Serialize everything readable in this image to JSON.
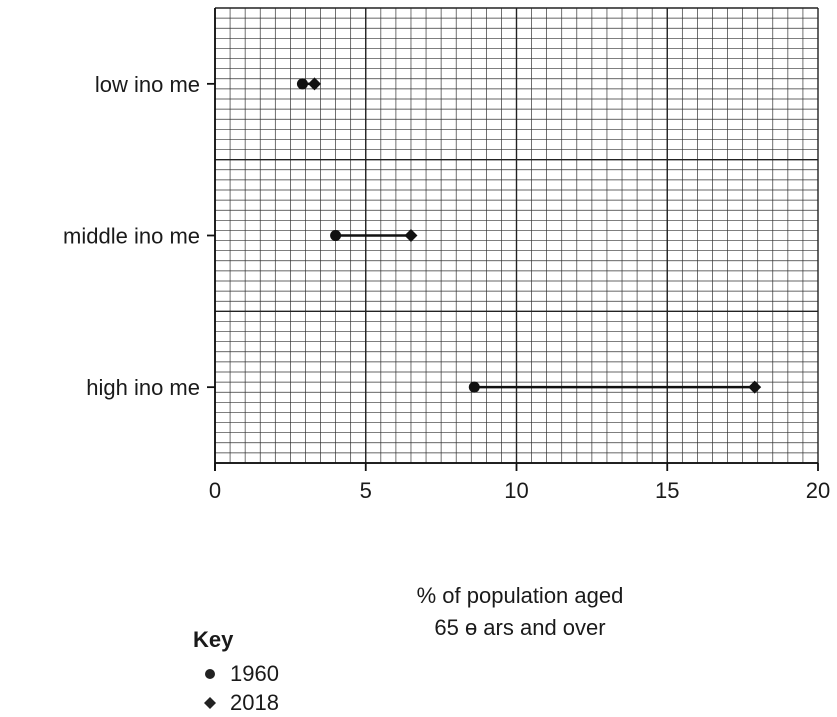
{
  "chart_data": {
    "type": "dumbbell",
    "categories": [
      "low ino me",
      "middle ino me",
      "high ino me"
    ],
    "series": [
      {
        "name": "1960",
        "marker": "circle",
        "values": [
          2.9,
          4.0,
          8.6
        ]
      },
      {
        "name": "2018",
        "marker": "diamond",
        "values": [
          3.3,
          6.5,
          17.9
        ]
      }
    ],
    "xlabel_line1": "% of population aged",
    "xlabel_line2": "65 ɵ ars and over",
    "xlim": [
      0,
      20
    ],
    "xticks": [
      "0",
      "5",
      "10",
      "15",
      "20"
    ],
    "grid": true,
    "legend_placement": "bottom-left",
    "legend_title": "Key",
    "color": "#222222"
  }
}
